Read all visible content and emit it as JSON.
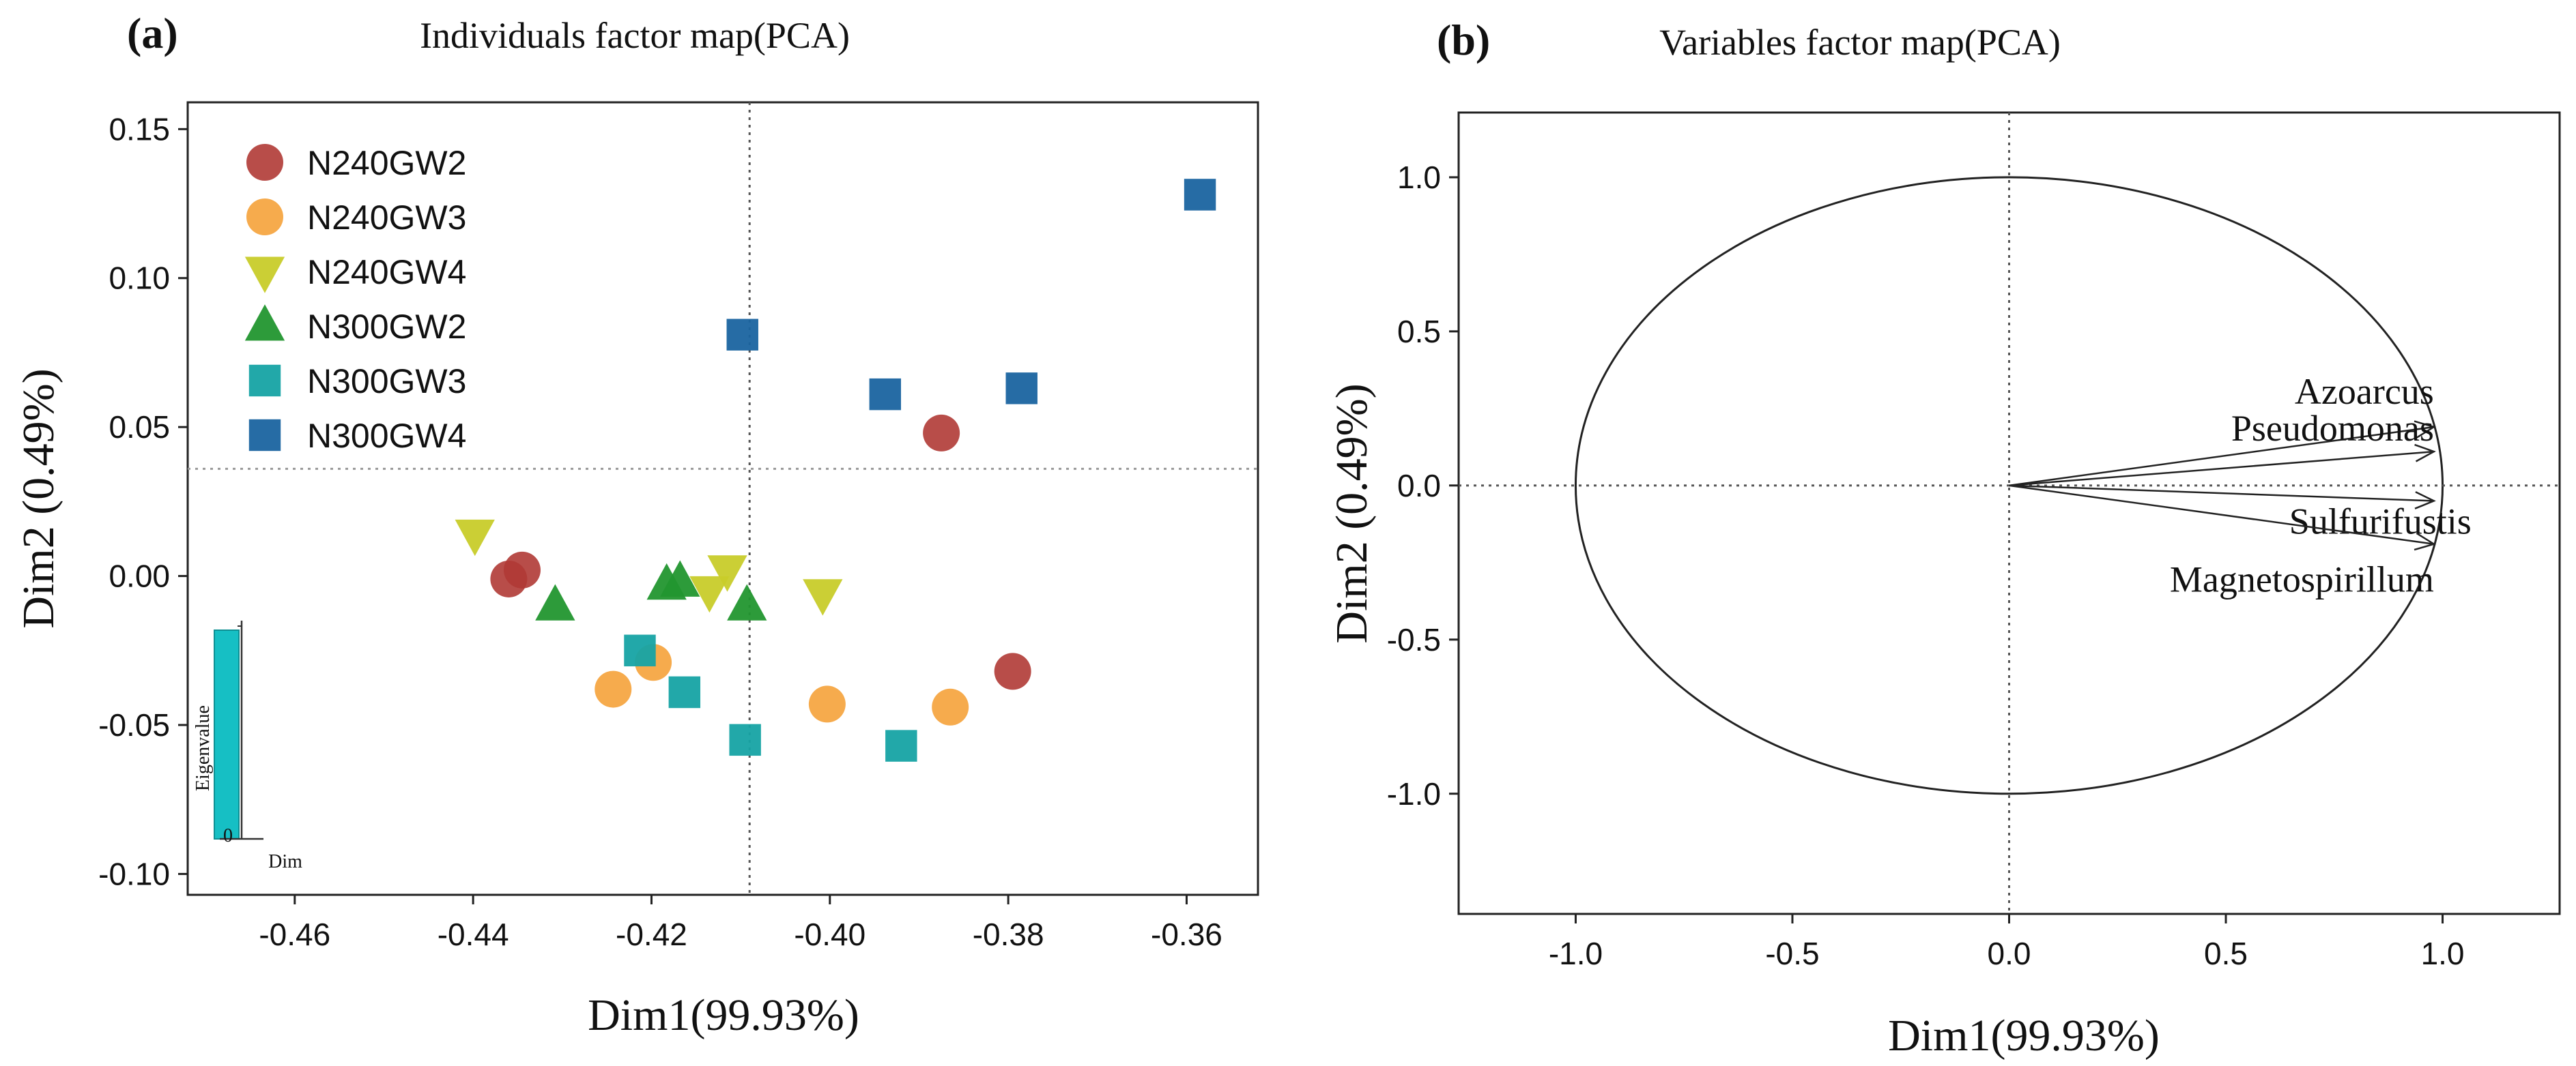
{
  "chart_data": [
    {
      "type": "scatter",
      "panel_label": "(a)",
      "title": "Individuals factor map(PCA)",
      "xlabel": "Dim1(99.93%)",
      "ylabel": "Dim2 (0.49%)",
      "xlim": [
        -0.472,
        -0.352
      ],
      "ylim": [
        -0.107,
        0.159
      ],
      "xticks": [
        -0.46,
        -0.44,
        -0.42,
        -0.4,
        -0.38,
        -0.36
      ],
      "xtick_labels": [
        "-0.46",
        "-0.44",
        "-0.42",
        "-0.40",
        "-0.38",
        "-0.36"
      ],
      "yticks": [
        -0.1,
        -0.05,
        0.0,
        0.05,
        0.1,
        0.15
      ],
      "ytick_labels": [
        "-0.10",
        "-0.05",
        "0.00",
        "0.05",
        "0.10",
        "0.15"
      ],
      "guides": {
        "x": -0.409,
        "y": 0.036
      },
      "legend_position": "top-left",
      "series": [
        {
          "name": "N240GW2",
          "marker": "circle",
          "color": "#b03a35",
          "points": [
            [
              -0.436,
              -0.001
            ],
            [
              -0.4345,
              0.002
            ],
            [
              -0.3875,
              0.048
            ],
            [
              -0.3795,
              -0.032
            ]
          ]
        },
        {
          "name": "N240GW3",
          "marker": "circle",
          "color": "#f5a23a",
          "points": [
            [
              -0.4243,
              -0.038
            ],
            [
              -0.4198,
              -0.029
            ],
            [
              -0.4003,
              -0.043
            ],
            [
              -0.3865,
              -0.044
            ]
          ]
        },
        {
          "name": "N240GW4",
          "marker": "triangle-down",
          "color": "#c8cc2a",
          "points": [
            [
              -0.4398,
              0.014
            ],
            [
              -0.4135,
              -0.005
            ],
            [
              -0.4115,
              0.002
            ],
            [
              -0.4008,
              -0.006
            ]
          ]
        },
        {
          "name": "N300GW2",
          "marker": "triangle-up",
          "color": "#22962f",
          "points": [
            [
              -0.4308,
              -0.01
            ],
            [
              -0.4183,
              -0.003
            ],
            [
              -0.4168,
              -0.002
            ],
            [
              -0.4093,
              -0.01
            ]
          ]
        },
        {
          "name": "N300GW3",
          "marker": "square",
          "color": "#16a3a4",
          "points": [
            [
              -0.4213,
              -0.025
            ],
            [
              -0.4163,
              -0.039
            ],
            [
              -0.4095,
              -0.055
            ],
            [
              -0.392,
              -0.057
            ]
          ]
        },
        {
          "name": "N300GW4",
          "marker": "square",
          "color": "#1a64a0",
          "points": [
            [
              -0.4098,
              0.081
            ],
            [
              -0.3938,
              0.061
            ],
            [
              -0.3785,
              0.063
            ],
            [
              -0.3585,
              0.128
            ]
          ]
        }
      ],
      "inset": {
        "type": "bar",
        "ylabel": "Eigenvalue",
        "xlabel": "Dim",
        "zero_label": "0",
        "bar_color": "#16bfc4"
      }
    },
    {
      "type": "correlation-circle",
      "panel_label": "(b)",
      "title": "Variables factor map(PCA)",
      "xlabel": "Dim1(99.93%)",
      "ylabel": "Dim2 (0.49%)",
      "xlim": [
        -1.27,
        1.27
      ],
      "ylim": [
        -1.39,
        1.21
      ],
      "xticks": [
        -1.0,
        -0.5,
        0.0,
        0.5,
        1.0
      ],
      "xtick_labels": [
        "-1.0",
        "-0.5",
        "0.0",
        "0.5",
        "1.0"
      ],
      "yticks": [
        -1.0,
        -0.5,
        0.0,
        0.5,
        1.0
      ],
      "ytick_labels": [
        "-1.0",
        "-0.5",
        "0.0",
        "0.5",
        "1.0"
      ],
      "circle_radius": 1.0,
      "vectors": [
        {
          "name": "Azoarcus",
          "x": 0.98,
          "y": 0.19
        },
        {
          "name": "Pseudomonas",
          "x": 0.98,
          "y": 0.11
        },
        {
          "name": "Sulfurifustis",
          "x": 0.98,
          "y": -0.05
        },
        {
          "name": "Magnetospirillum",
          "x": 0.98,
          "y": -0.19
        }
      ]
    }
  ]
}
